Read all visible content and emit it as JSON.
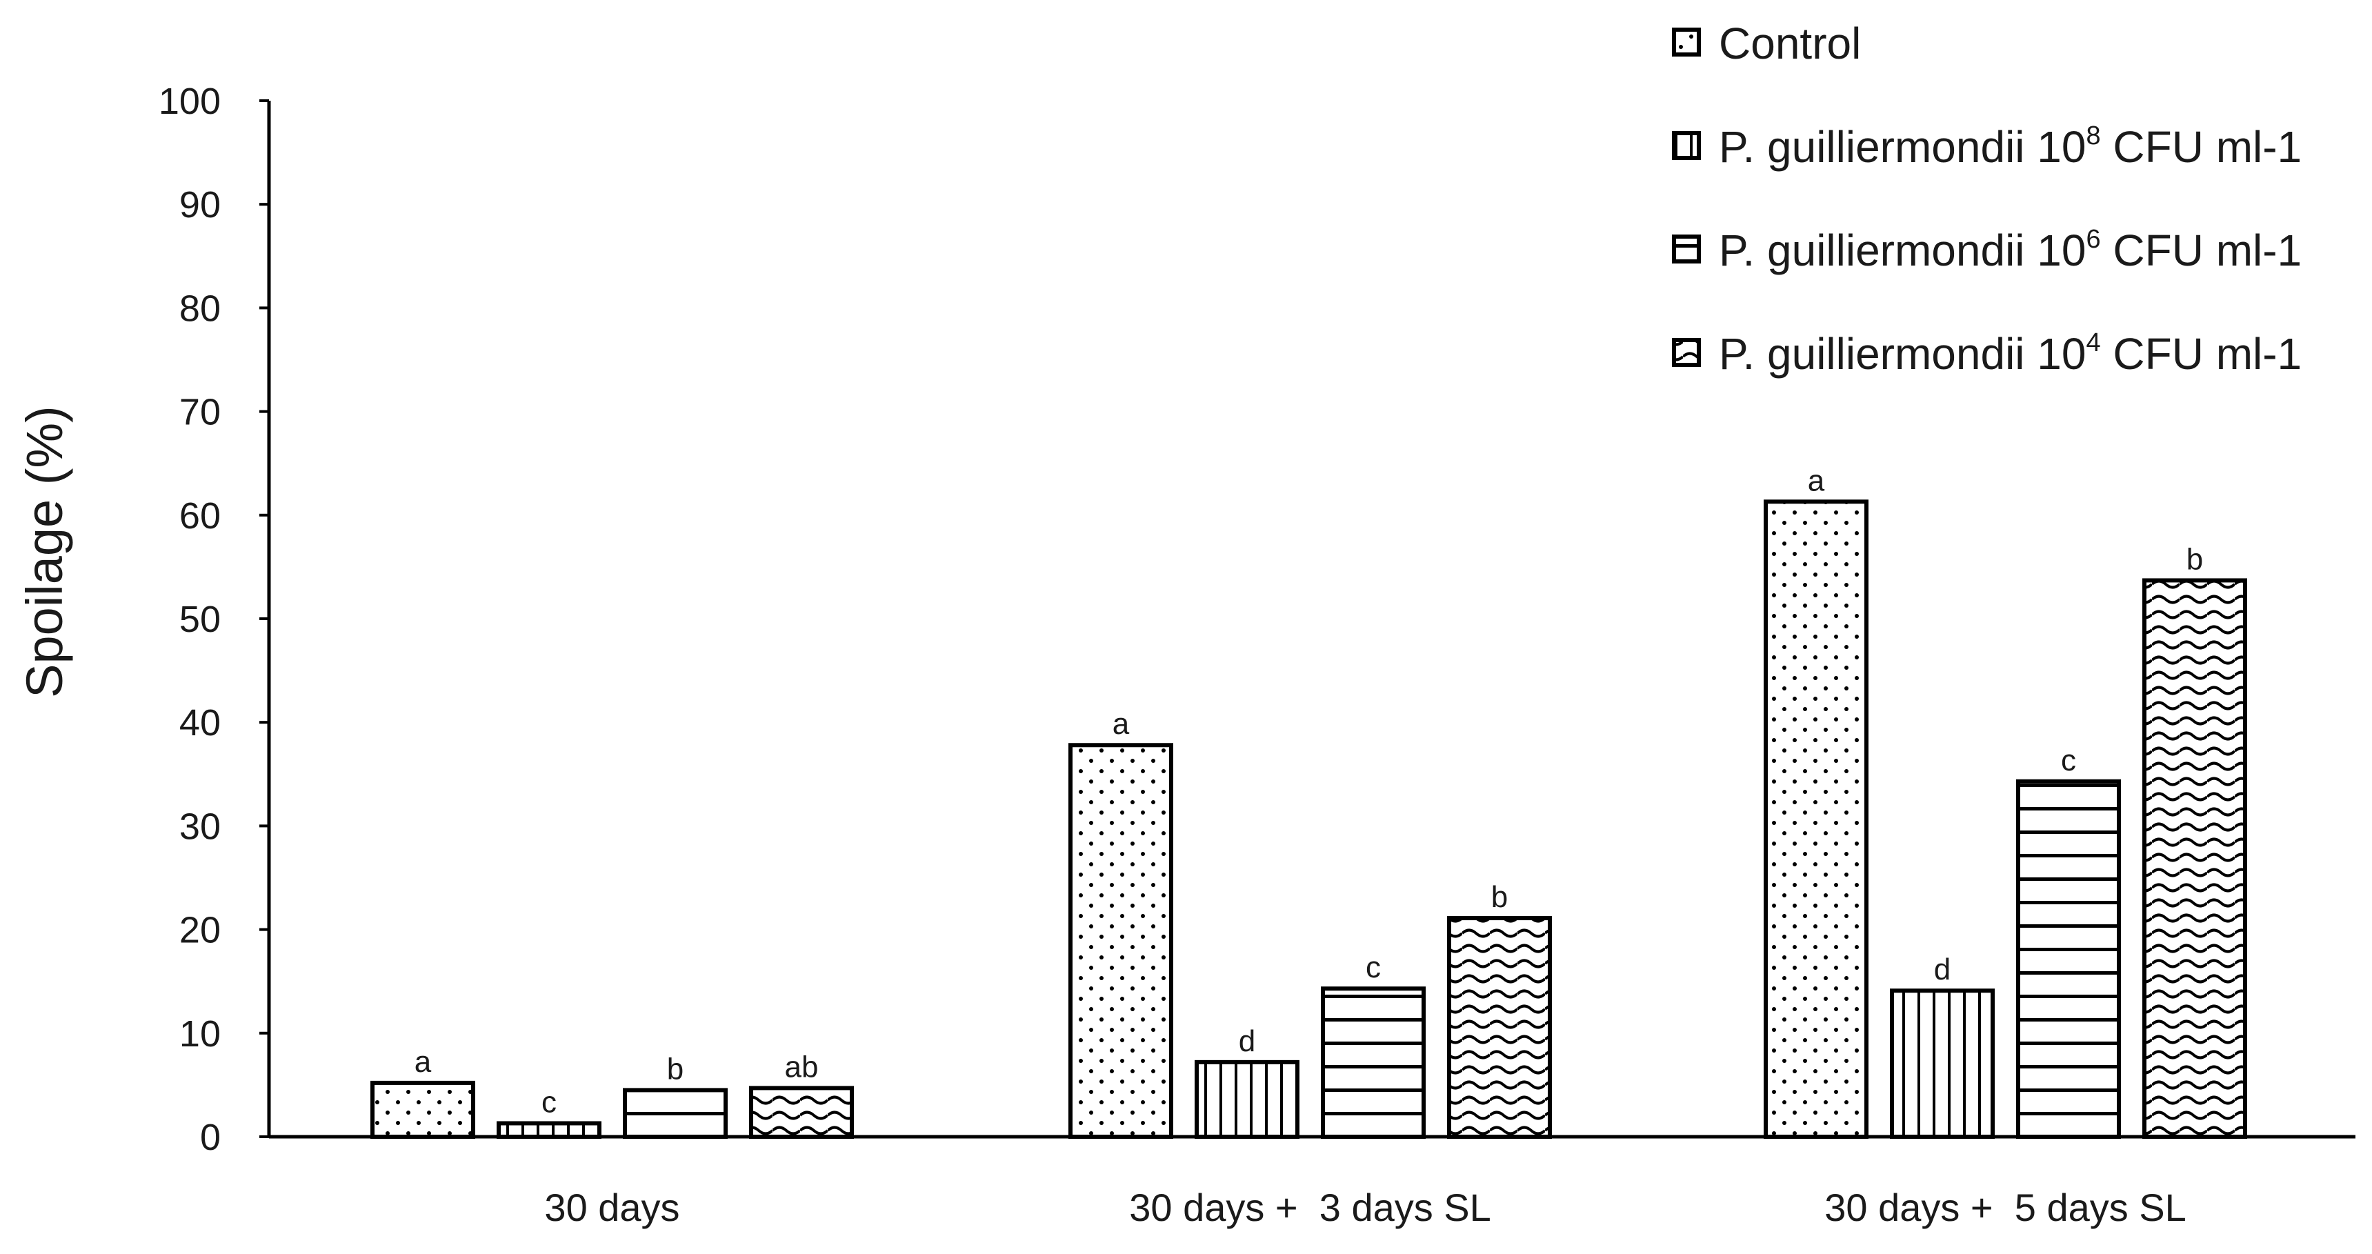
{
  "chart_data": {
    "type": "bar",
    "title": "",
    "xlabel": "",
    "ylabel": "Spoilage (%)",
    "ylim": [
      0,
      100
    ],
    "yticks": [
      0,
      10,
      20,
      30,
      40,
      50,
      60,
      70,
      80,
      90,
      100
    ],
    "categories": [
      "30 days",
      "30 days +  3 days SL",
      "30 days +  5 days SL"
    ],
    "series": [
      {
        "name": "Control",
        "pattern": "dots",
        "values": [
          5.2,
          37.8,
          61.3
        ],
        "labels": [
          "a",
          "a",
          "a"
        ]
      },
      {
        "name": "P. guilliermondii 10^8 CFU ml-1",
        "pattern": "vertical-lines",
        "values": [
          1.3,
          7.2,
          14.1
        ],
        "labels": [
          "c",
          "d",
          "d"
        ]
      },
      {
        "name": "P. guilliermondii 10^6 CFU ml-1",
        "pattern": "horizontal-lines",
        "values": [
          4.5,
          14.3,
          34.3
        ],
        "labels": [
          "b",
          "c",
          "c"
        ]
      },
      {
        "name": "P. guilliermondii 10^4 CFU ml-1",
        "pattern": "waves",
        "values": [
          4.7,
          21.1,
          53.7
        ],
        "labels": [
          "ab",
          "b",
          "b"
        ]
      }
    ],
    "legend": {
      "position": "top-right",
      "entries": [
        {
          "prefix": "Control",
          "exp": "",
          "suffix": ""
        },
        {
          "prefix": "P. guilliermondii 10",
          "exp": "8",
          "suffix": " CFU ml-1"
        },
        {
          "prefix": "P. guilliermondii 10",
          "exp": "6",
          "suffix": " CFU ml-1"
        },
        {
          "prefix": "P. guilliermondii 10",
          "exp": "4",
          "suffix": " CFU ml-1"
        }
      ]
    },
    "grid": false,
    "colors": {
      "bar_fill": "#ffffff",
      "bar_stroke": "#000000",
      "axis": "#000000",
      "text": "#1a1a1a"
    }
  }
}
